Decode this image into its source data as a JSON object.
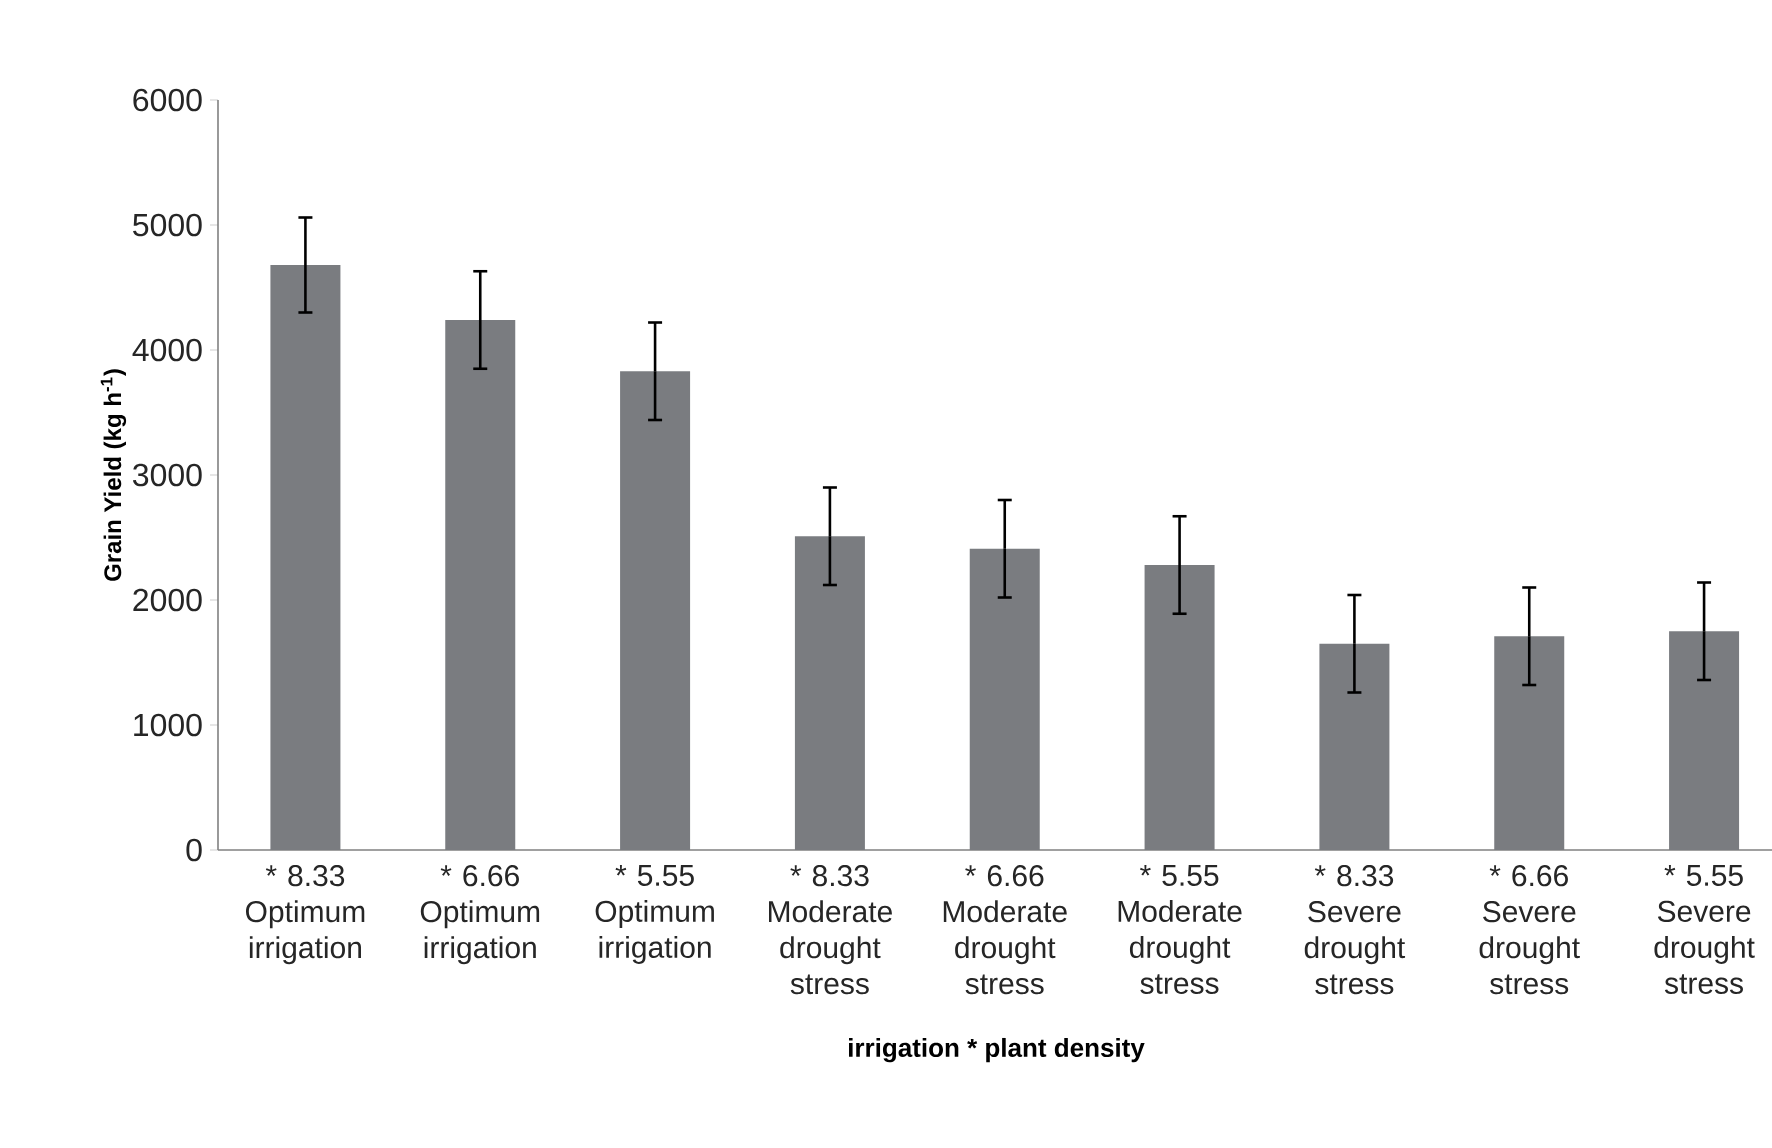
{
  "chart_data": {
    "type": "bar",
    "xlabel": "irrigation * plant density",
    "ylabel": "Grain Yield (kg h$^{-1}$)",
    "categories": [
      "* 8.33 Optimum irrigation",
      "* 6.66 Optimum irrigation",
      "* 5.55 Optimum irrigation",
      "* 8.33 Moderate drought stress",
      "* 6.66 Moderate drought stress",
      "* 5.55 Moderate drought stress",
      "* 8.33 Severe drought stress",
      "* 6.66 Severe drought stress",
      "* 5.55 Severe drought stress"
    ],
    "values": [
      4680,
      4240,
      3830,
      2510,
      2410,
      2280,
      1650,
      1710,
      1750
    ],
    "errors": [
      380,
      390,
      390,
      390,
      390,
      390,
      390,
      390,
      390
    ],
    "color": "#7a7c80",
    "ylim": [
      0,
      6000
    ],
    "yticks": [
      0,
      1000,
      2000,
      3000,
      4000,
      5000,
      6000
    ],
    "grid": false
  }
}
